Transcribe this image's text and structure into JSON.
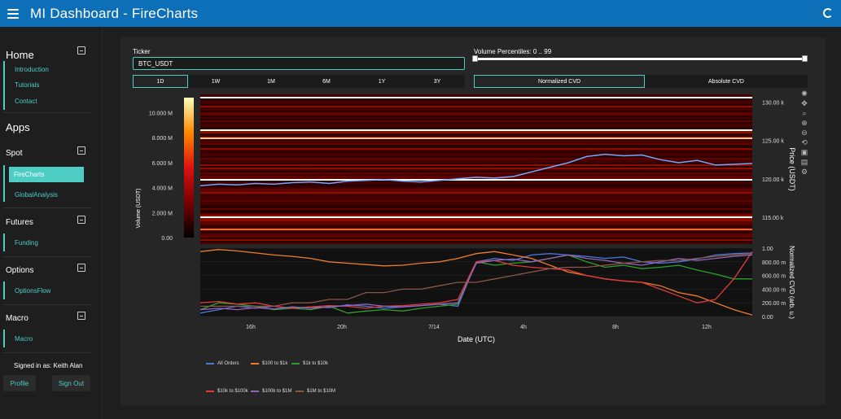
{
  "header": {
    "title": "MI Dashboard  -  FireCharts"
  },
  "sidebar": {
    "home_title": "Home",
    "home_links": [
      "Introduction",
      "Tutorials",
      "Contact"
    ],
    "apps_title": "Apps",
    "spot_title": "Spot",
    "spot_links": [
      "FireCharts",
      "GlobalAnalysis"
    ],
    "futures_title": "Futures",
    "futures_links": [
      "Funding"
    ],
    "options_title": "Options",
    "options_links": [
      "OptionsFlow"
    ],
    "macro_title": "Macro",
    "macro_links": [
      "Macro"
    ],
    "signed_in": "Signed in as: Keith Alan",
    "profile_label": "Profile",
    "signout_label": "Sign Out"
  },
  "controls": {
    "ticker_label": "Ticker",
    "ticker_value": "BTC_USDT",
    "percentile_label": "Volume Percentiles: 0 .. 99",
    "percentile_range": [
      0,
      99
    ],
    "ranges": [
      "1D",
      "1W",
      "1M",
      "6M",
      "1Y",
      "3Y"
    ],
    "active_range": "1D",
    "cvd_modes": [
      "Normalized CVD",
      "Absolute CVD"
    ],
    "active_cvd": "Normalized CVD"
  },
  "colors": {
    "accent": "#4ecdc4",
    "header": "#0d6fb8"
  },
  "chart_data": [
    {
      "type": "heatmap",
      "title": "",
      "xlabel": "Date (UTC)",
      "ylabel": "Price (USDT)",
      "colorbar_label": "Volume (USDT)",
      "colorbar_ticks": [
        "0.00",
        "2.000 M",
        "4.000 M",
        "6.000 M",
        "8.000 M",
        "10.000 M"
      ],
      "y_ticks": [
        "115.00 k",
        "120.00 k",
        "125.00 k",
        "130.00 k"
      ],
      "ylim": [
        111500,
        131000
      ],
      "price_line": {
        "name": "Price",
        "values": [
          119100,
          119300,
          119200,
          119400,
          119300,
          119500,
          119600,
          119400,
          119700,
          119800,
          119900,
          119700,
          119600,
          119800,
          120000,
          120200,
          120100,
          120300,
          120900,
          121500,
          122100,
          122900,
          123200,
          123000,
          123100,
          122500,
          122100,
          122400,
          121800,
          121900,
          122000
        ]
      }
    },
    {
      "type": "line",
      "xlabel": "Date (UTC)",
      "ylabel": "Normalized CVD (arb. u.)",
      "x_ticks": [
        "16h",
        "20h",
        "7/14",
        "4h",
        "8h",
        "12h"
      ],
      "y_ticks": [
        "0.00",
        "200.00 m",
        "400.00 m",
        "600.00 m",
        "800.00 m",
        "1.00"
      ],
      "ylim": [
        0,
        1
      ],
      "series": [
        {
          "name": "All Orders",
          "color": "#4c78d8",
          "values": [
            0.05,
            0.1,
            0.15,
            0.12,
            0.15,
            0.12,
            0.14,
            0.13,
            0.17,
            0.15,
            0.12,
            0.14,
            0.16,
            0.18,
            0.15,
            0.8,
            0.85,
            0.82,
            0.9,
            0.92,
            0.9,
            0.88,
            0.85,
            0.87,
            0.8,
            0.78,
            0.8,
            0.84,
            0.9,
            0.92,
            0.93
          ]
        },
        {
          "name": "$100 to $1k",
          "color": "#ef7c2a",
          "values": [
            0.95,
            0.98,
            0.96,
            0.93,
            0.9,
            0.88,
            0.85,
            0.8,
            0.78,
            0.76,
            0.74,
            0.75,
            0.78,
            0.8,
            0.85,
            0.92,
            0.95,
            0.9,
            0.85,
            0.75,
            0.65,
            0.6,
            0.55,
            0.52,
            0.5,
            0.45,
            0.35,
            0.3,
            0.2,
            0.1,
            0.02
          ]
        },
        {
          "name": "$1k to $10k",
          "color": "#2ca02c",
          "values": [
            0.1,
            0.2,
            0.18,
            0.15,
            0.1,
            0.12,
            0.1,
            0.15,
            0.05,
            0.08,
            0.1,
            0.08,
            0.12,
            0.15,
            0.18,
            0.8,
            0.75,
            0.78,
            0.8,
            0.85,
            0.9,
            0.8,
            0.72,
            0.75,
            0.7,
            0.72,
            0.75,
            0.68,
            0.62,
            0.55,
            0.55
          ]
        },
        {
          "name": "$10k to $100k",
          "color": "#e03b3b",
          "values": [
            0.2,
            0.22,
            0.18,
            0.2,
            0.15,
            0.12,
            0.14,
            0.16,
            0.15,
            0.12,
            0.15,
            0.16,
            0.18,
            0.2,
            0.25,
            0.8,
            0.82,
            0.75,
            0.72,
            0.7,
            0.68,
            0.6,
            0.55,
            0.52,
            0.5,
            0.4,
            0.3,
            0.2,
            0.25,
            0.55,
            0.95
          ]
        },
        {
          "name": "$100k to $1M",
          "color": "#9467bd",
          "values": [
            0.1,
            0.12,
            0.1,
            0.13,
            0.11,
            0.14,
            0.12,
            0.14,
            0.16,
            0.18,
            0.15,
            0.14,
            0.16,
            0.18,
            0.2,
            0.78,
            0.82,
            0.84,
            0.8,
            0.85,
            0.9,
            0.85,
            0.82,
            0.78,
            0.75,
            0.8,
            0.85,
            0.82,
            0.85,
            0.88,
            0.9
          ]
        },
        {
          "name": "$1M to $10M",
          "color": "#8c564b",
          "values": [
            0.15,
            0.15,
            0.15,
            0.15,
            0.15,
            0.2,
            0.2,
            0.25,
            0.25,
            0.35,
            0.35,
            0.4,
            0.4,
            0.45,
            0.5,
            0.5,
            0.55,
            0.6,
            0.65,
            0.7,
            0.72,
            0.72,
            0.75,
            0.78,
            0.8,
            0.82,
            0.82,
            0.85,
            0.88,
            0.9,
            0.92
          ]
        }
      ]
    }
  ]
}
